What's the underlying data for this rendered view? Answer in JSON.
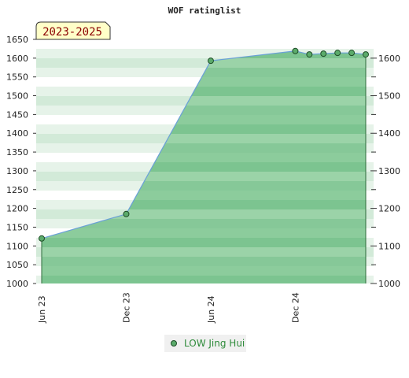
{
  "chart_data": {
    "type": "area",
    "title": "WOF ratinglist",
    "period_badge": "2023-2025",
    "xlabel": "",
    "ylabel": "",
    "ylim": [
      1000,
      1650
    ],
    "y_ticks_left": [
      1000,
      1050,
      1100,
      1150,
      1200,
      1250,
      1300,
      1350,
      1400,
      1450,
      1500,
      1550,
      1600,
      1650
    ],
    "y_ticks_right": [
      1000,
      1100,
      1200,
      1300,
      1400,
      1500,
      1600
    ],
    "x_tick_labels": [
      {
        "label": "Jun 23",
        "x": "2023-06"
      },
      {
        "label": "Dec 23",
        "x": "2023-12"
      },
      {
        "label": "Jun 24",
        "x": "2024-06"
      },
      {
        "label": "Dec 24",
        "x": "2024-12"
      }
    ],
    "xlim": [
      "2023-06",
      "2025-05"
    ],
    "grid": true,
    "legend_placement": "bottom-center",
    "series": [
      {
        "name": "LOW Jing Hui",
        "color": "#5bab6b",
        "line_color": "#6aa0d8",
        "points": [
          {
            "x": "2023-06",
            "y": 1120
          },
          {
            "x": "2023-12",
            "y": 1185
          },
          {
            "x": "2024-06",
            "y": 1593
          },
          {
            "x": "2024-12",
            "y": 1619
          },
          {
            "x": "2025-01",
            "y": 1610
          },
          {
            "x": "2025-02",
            "y": 1612
          },
          {
            "x": "2025-03",
            "y": 1614
          },
          {
            "x": "2025-04",
            "y": 1614
          },
          {
            "x": "2025-05",
            "y": 1610
          }
        ]
      }
    ]
  }
}
